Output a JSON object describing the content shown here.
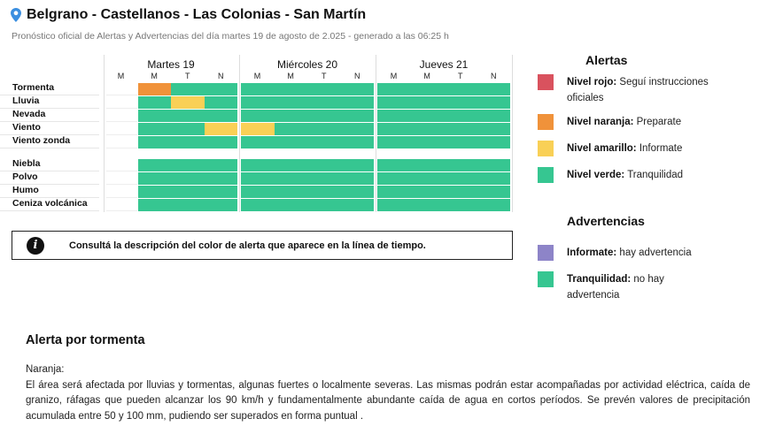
{
  "header": {
    "location_icon": "map-pin-icon",
    "title": "Belgrano - Castellanos - Las Colonias - San Martín",
    "subtitle": "Pronóstico oficial de Alertas y Advertencias del día martes 19 de agosto de 2.025 - generado a las 06:25 h"
  },
  "timeline": {
    "days": [
      {
        "label": "Martes 19",
        "slots": [
          "M",
          "M",
          "T",
          "N"
        ]
      },
      {
        "label": "Miércoles 20",
        "slots": [
          "M",
          "M",
          "T",
          "N"
        ]
      },
      {
        "label": "Jueves 21",
        "slots": [
          "M",
          "M",
          "T",
          "N"
        ]
      }
    ],
    "alert_rows": [
      {
        "label": "Tormenta",
        "values": [
          "",
          "orange",
          "green",
          "green",
          "green",
          "green",
          "green",
          "green",
          "green",
          "green",
          "green",
          "green"
        ]
      },
      {
        "label": "Lluvia",
        "values": [
          "",
          "green",
          "yellow",
          "green",
          "green",
          "green",
          "green",
          "green",
          "green",
          "green",
          "green",
          "green"
        ]
      },
      {
        "label": "Nevada",
        "values": [
          "",
          "green",
          "green",
          "green",
          "green",
          "green",
          "green",
          "green",
          "green",
          "green",
          "green",
          "green"
        ]
      },
      {
        "label": "Viento",
        "values": [
          "",
          "green",
          "green",
          "yellow",
          "yellow",
          "green",
          "green",
          "green",
          "green",
          "green",
          "green",
          "green"
        ]
      },
      {
        "label": "Viento zonda",
        "values": [
          "",
          "green",
          "green",
          "green",
          "green",
          "green",
          "green",
          "green",
          "green",
          "green",
          "green",
          "green"
        ]
      }
    ],
    "warning_rows": [
      {
        "label": "Niebla",
        "values": [
          "",
          "green",
          "green",
          "green",
          "green",
          "green",
          "green",
          "green",
          "green",
          "green",
          "green",
          "green"
        ]
      },
      {
        "label": "Polvo",
        "values": [
          "",
          "green",
          "green",
          "green",
          "green",
          "green",
          "green",
          "green",
          "green",
          "green",
          "green",
          "green"
        ]
      },
      {
        "label": "Humo",
        "values": [
          "",
          "green",
          "green",
          "green",
          "green",
          "green",
          "green",
          "green",
          "green",
          "green",
          "green",
          "green"
        ]
      },
      {
        "label": "Ceniza volcánica",
        "values": [
          "",
          "green",
          "green",
          "green",
          "green",
          "green",
          "green",
          "green",
          "green",
          "green",
          "green",
          "green"
        ]
      }
    ]
  },
  "colors": {
    "red": "#d9525e",
    "orange": "#f0923a",
    "yellow": "#f9d056",
    "green": "#36c691",
    "purple": "#8d84c8"
  },
  "info_box": {
    "icon": "info-icon",
    "text": "Consultá la descripción del color de alerta que aparece en la línea de tiempo."
  },
  "legend": {
    "alerts_title": "Alertas",
    "alerts": [
      {
        "color": "red",
        "label": "Nivel rojo:",
        "desc": "Seguí instrucciones oficiales"
      },
      {
        "color": "orange",
        "label": "Nivel naranja:",
        "desc": "Preparate"
      },
      {
        "color": "yellow",
        "label": "Nivel amarillo:",
        "desc": "Informate"
      },
      {
        "color": "green",
        "label": "Nivel verde:",
        "desc": "Tranquilidad"
      }
    ],
    "warnings_title": "Advertencias",
    "warnings": [
      {
        "color": "purple",
        "label": "Informate:",
        "desc": "hay advertencia"
      },
      {
        "color": "green",
        "label": "Tranquilidad:",
        "desc": "no hay advertencia"
      }
    ]
  },
  "alert_detail": {
    "title": "Alerta por tormenta",
    "level": "Naranja:",
    "description": "El área será afectada por lluvias y tormentas, algunas fuertes o localmente severas. Las mismas podrán estar acompañadas por actividad eléctrica, caída de granizo, ráfagas que pueden alcanzar los 90 km/h y fundamentalmente abundante caída de agua en cortos períodos. Se prevén valores de precipitación acumulada entre 50 y 100 mm, pudiendo ser superados en forma puntual ."
  }
}
